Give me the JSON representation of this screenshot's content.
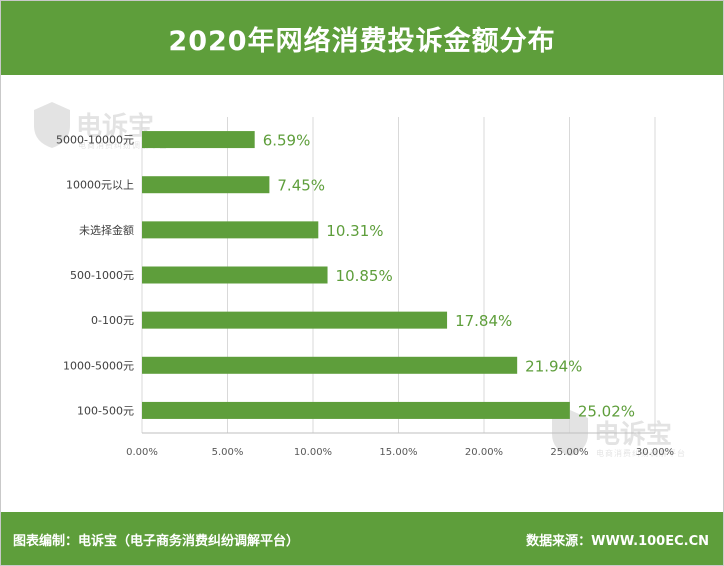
{
  "header": {
    "title": "2020年网络消费投诉金额分布"
  },
  "footer": {
    "left": "图表编制：电诉宝（电子商务消费纠纷调解平台）",
    "right": "数据来源：WWW.100EC.CN"
  },
  "watermark": {
    "text": "电诉宝",
    "sub": "电商消费纠纷调解平台"
  },
  "colors": {
    "bar": "#5e9e3b",
    "label": "#5e9e3b",
    "header": "#5e9e3b"
  },
  "chart_data": {
    "type": "bar",
    "orientation": "horizontal",
    "categories": [
      "5000-10000元",
      "10000元以上",
      "未选择金额",
      "500-1000元",
      "0-100元",
      "1000-5000元",
      "100-500元"
    ],
    "values": [
      6.59,
      7.45,
      10.31,
      10.85,
      17.84,
      21.94,
      25.02
    ],
    "value_labels": [
      "6.59%",
      "7.45%",
      "10.31%",
      "10.85%",
      "17.84%",
      "21.94%",
      "25.02%"
    ],
    "xlim": [
      0,
      30
    ],
    "xticks": [
      0,
      5,
      10,
      15,
      20,
      25,
      30
    ],
    "xtick_labels": [
      "0.00%",
      "5.00%",
      "10.00%",
      "15.00%",
      "20.00%",
      "25.00%",
      "30.00%"
    ],
    "grid": true
  }
}
